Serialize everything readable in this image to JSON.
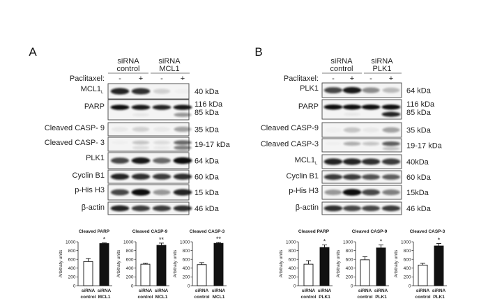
{
  "panels": [
    {
      "label": "A",
      "groups": [
        {
          "line1": "siRNA",
          "line2": "control"
        },
        {
          "line1": "siRNA",
          "line2": "MCL1"
        }
      ],
      "treatment_label": "Paclitaxel:",
      "lane_signs": [
        "-",
        "+",
        "-",
        "+"
      ],
      "rows": [
        {
          "label": "MCL1",
          "sub": "L",
          "kda": [
            "40 kDa"
          ],
          "bands": [
            [
              0.9,
              0.85,
              0.15,
              0.02
            ]
          ]
        },
        {
          "label": "PARP",
          "kda": [
            "116 kDa",
            "85 kDa"
          ],
          "bands": [
            [
              1,
              0.95,
              0.9,
              0.95
            ],
            [
              0,
              0.05,
              0,
              0.4
            ]
          ]
        },
        {
          "label": "Cleaved CASP- 9",
          "kda": [
            "35 kDa"
          ],
          "bands": [
            [
              0.05,
              0.15,
              0.05,
              0.35
            ]
          ]
        },
        {
          "label": "Cleaved CASP- 3",
          "kda": [
            "19-17 kDa"
          ],
          "bands": [
            [
              0.02,
              0.2,
              0.1,
              0.6
            ],
            [
              0,
              0.1,
              0.05,
              0.5
            ]
          ]
        },
        {
          "label": "PLK1",
          "kda": [
            "64 kDa"
          ],
          "bands": [
            [
              0.75,
              0.95,
              0.6,
              1
            ]
          ]
        },
        {
          "label": "Cyclin B1",
          "kda": [
            "60 kDa"
          ],
          "bands": [
            [
              0.9,
              0.85,
              0.8,
              0.85
            ]
          ]
        },
        {
          "label": "p-His H3",
          "kda": [
            "15 kDa"
          ],
          "bands": [
            [
              0.75,
              1,
              0.4,
              0.9
            ]
          ]
        },
        {
          "label": "β-actin",
          "kda": [
            "46 kDa"
          ],
          "bands": [
            [
              0.9,
              0.8,
              0.8,
              0.85
            ]
          ]
        }
      ]
    },
    {
      "label": "B",
      "groups": [
        {
          "line1": "siRNA",
          "line2": "control"
        },
        {
          "line1": "siRNA",
          "line2": "PLK1"
        }
      ],
      "treatment_label": "Paclitaxel:",
      "lane_signs": [
        "-",
        "+",
        "-",
        "+"
      ],
      "rows": [
        {
          "label": "PLK1",
          "kda": [
            "64 kDa"
          ],
          "bands": [
            [
              0.75,
              0.95,
              0.45,
              0.25
            ]
          ]
        },
        {
          "label": "PARP",
          "kda": [
            "116 kDa",
            "85 kDa"
          ],
          "bands": [
            [
              1,
              1,
              1,
              1
            ],
            [
              0,
              0.05,
              0,
              0.9
            ]
          ]
        },
        {
          "label": "Cleaved CASP-9",
          "kda": [
            "35 kDa"
          ],
          "bands": [
            [
              0.02,
              0.2,
              0.05,
              0.35
            ]
          ]
        },
        {
          "label": "Cleaved CASP-3",
          "kda": [
            "19-17 kDa"
          ],
          "bands": [
            [
              0.02,
              0.3,
              0.2,
              0.65
            ],
            [
              0,
              0,
              0,
              0.2
            ]
          ]
        },
        {
          "label": "MCL1",
          "sub": "L",
          "kda": [
            "40kDa"
          ],
          "bands": [
            [
              0.9,
              0.9,
              0.85,
              0.8
            ]
          ]
        },
        {
          "label": "Cyclin B1",
          "kda": [
            "60 kDa"
          ],
          "bands": [
            [
              0.8,
              0.8,
              0.7,
              0.65
            ]
          ]
        },
        {
          "label": "p-His H3",
          "kda": [
            "15kDa"
          ],
          "bands": [
            [
              0.4,
              1,
              0.75,
              0.5
            ]
          ]
        },
        {
          "label": "β-actin",
          "kda": [
            "46 kDa"
          ],
          "bands": [
            [
              0.85,
              0.75,
              0.75,
              0.8
            ]
          ]
        }
      ]
    }
  ],
  "chart_data": [
    {
      "type": "bar",
      "title": "Cleaved PARP",
      "ylabel": "Arbitraty units",
      "ylim": [
        0,
        1000
      ],
      "yticks": [
        0,
        200,
        400,
        600,
        800,
        1000
      ],
      "categories": [
        [
          "siRNA",
          "control"
        ],
        [
          "siRNA",
          "MCL1"
        ]
      ],
      "values": [
        550,
        960
      ],
      "errors": [
        70,
        15
      ],
      "significance": [
        "",
        "*"
      ],
      "colors": [
        "#ffffff",
        "#111111"
      ]
    },
    {
      "type": "bar",
      "title": "Cleaved CASP-9",
      "ylabel": "Arbitraty units",
      "ylim": [
        0,
        1000
      ],
      "yticks": [
        0,
        200,
        400,
        600,
        800,
        1000
      ],
      "categories": [
        [
          "siRNA",
          "control"
        ],
        [
          "siRNA",
          "MCL1"
        ]
      ],
      "values": [
        490,
        920
      ],
      "errors": [
        20,
        50
      ],
      "significance": [
        "",
        "**"
      ],
      "colors": [
        "#ffffff",
        "#111111"
      ]
    },
    {
      "type": "bar",
      "title": "Cleaved CASP-3",
      "ylabel": "Arbitraty units",
      "ylim": [
        0,
        1000
      ],
      "yticks": [
        0,
        200,
        400,
        600,
        800,
        1000
      ],
      "categories": [
        [
          "siRNA",
          "control"
        ],
        [
          "siRNA",
          "MCL1"
        ]
      ],
      "values": [
        480,
        965
      ],
      "errors": [
        45,
        20
      ],
      "significance": [
        "",
        "**"
      ],
      "colors": [
        "#ffffff",
        "#111111"
      ]
    },
    {
      "type": "bar",
      "title": "Cleaved PARP",
      "ylabel": "Arbitraty units",
      "ylim": [
        0,
        1000
      ],
      "yticks": [
        0,
        200,
        400,
        600,
        800,
        1000
      ],
      "categories": [
        [
          "siRNA",
          "control"
        ],
        [
          "siRNA",
          "PLK1"
        ]
      ],
      "values": [
        490,
        870
      ],
      "errors": [
        80,
        60
      ],
      "significance": [
        "",
        "*"
      ],
      "colors": [
        "#ffffff",
        "#111111"
      ]
    },
    {
      "type": "bar",
      "title": "Cleaved CASP-9",
      "ylabel": "Arbitraty units",
      "ylim": [
        0,
        1000
      ],
      "yticks": [
        0,
        200,
        400,
        600,
        800,
        1000
      ],
      "categories": [
        [
          "siRNA",
          "control"
        ],
        [
          "siRNA",
          "PLK1"
        ]
      ],
      "values": [
        590,
        860
      ],
      "errors": [
        70,
        70
      ],
      "significance": [
        "",
        "*"
      ],
      "colors": [
        "#ffffff",
        "#111111"
      ]
    },
    {
      "type": "bar",
      "title": "Cleaved CASP-3",
      "ylabel": "Arbitraty units",
      "ylim": [
        0,
        1000
      ],
      "yticks": [
        0,
        200,
        400,
        600,
        800,
        1000
      ],
      "categories": [
        [
          "siRNA",
          "control"
        ],
        [
          "siRNA",
          "PLK1"
        ]
      ],
      "values": [
        470,
        905
      ],
      "errors": [
        40,
        55
      ],
      "significance": [
        "",
        "*"
      ],
      "colors": [
        "#ffffff",
        "#111111"
      ]
    }
  ]
}
